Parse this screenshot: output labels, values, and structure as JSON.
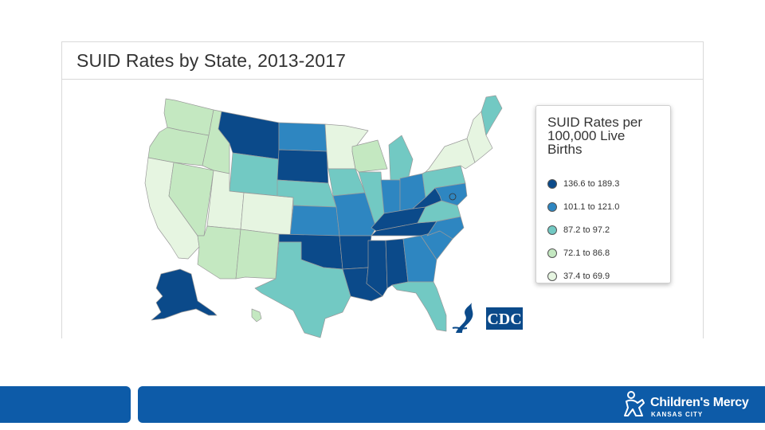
{
  "title": "SUID Rates by State, 2013-2017",
  "legend": {
    "title": "SUID Rates per 100,000 Live Births",
    "items": [
      {
        "label": "136.6 to 189.3",
        "color": "#0b4a8a"
      },
      {
        "label": "101.1 to 121.0",
        "color": "#2e86c1"
      },
      {
        "label": "87.2 to 97.2",
        "color": "#72c9c3"
      },
      {
        "label": "72.1 to 86.8",
        "color": "#c4e8c1"
      },
      {
        "label": "37.4 to 69.9",
        "color": "#e6f5e1"
      }
    ]
  },
  "cdc_logo_text": "CDC",
  "brand": {
    "name": "Children's Mercy",
    "subtitle": "KANSAS CITY"
  },
  "states": {
    "WA": "#c4e8c1",
    "OR": "#c4e8c1",
    "CA": "#e6f5e1",
    "NV": "#c4e8c1",
    "ID": "#c4e8c1",
    "MT": "#0b4a8a",
    "WY": "#72c9c3",
    "UT": "#e6f5e1",
    "CO": "#e6f5e1",
    "AZ": "#c4e8c1",
    "NM": "#c4e8c1",
    "ND": "#2e86c1",
    "SD": "#0b4a8a",
    "NE": "#72c9c3",
    "KS": "#2e86c1",
    "OK": "#0b4a8a",
    "TX": "#72c9c3",
    "MN": "#e6f5e1",
    "IA": "#72c9c3",
    "MO": "#2e86c1",
    "AR": "#0b4a8a",
    "LA": "#0b4a8a",
    "WI": "#c4e8c1",
    "IL": "#72c9c3",
    "MI": "#72c9c3",
    "IN": "#2e86c1",
    "OH": "#2e86c1",
    "KY": "#0b4a8a",
    "TN": "#0b4a8a",
    "MS": "#0b4a8a",
    "AL": "#0b4a8a",
    "GA": "#2e86c1",
    "FL": "#72c9c3",
    "SC": "#2e86c1",
    "NC": "#2e86c1",
    "VA": "#72c9c3",
    "WV": "#0b4a8a",
    "PA": "#72c9c3",
    "NY": "#e6f5e1",
    "ME": "#72c9c3",
    "NE_states": "#e6f5e1",
    "MD": "#2e86c1",
    "DC": "#2e86c1",
    "AK": "#0b4a8a",
    "HI": "#c4e8c1"
  }
}
